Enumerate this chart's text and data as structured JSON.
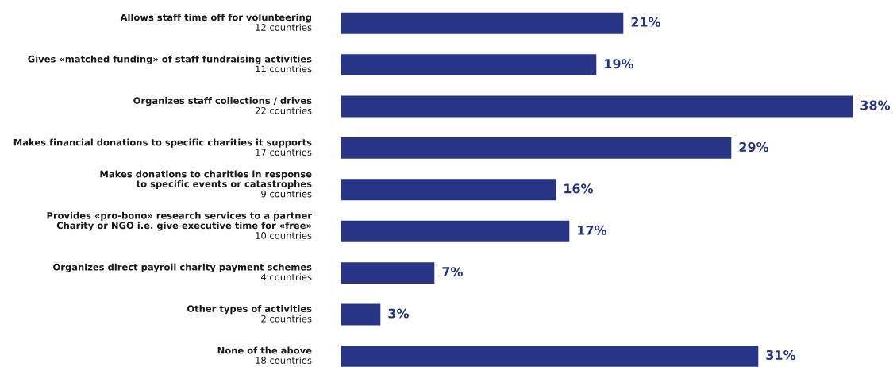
{
  "chart_data": {
    "type": "bar",
    "orientation": "horizontal",
    "categories": [
      "Allows staff time off for volunteering\n12 countries",
      "Gives «matched funding» of staff fundraising activities\n11 countries",
      "Organizes staff collections / drives\n22 countries",
      "Makes financial donations to specific charities it supports\n17 countries",
      "Makes donations to charities in response\nto specific events or catastrophes\n9 countries",
      "Provides «pro-bono» research services to a partner\nCharity or NGO i.e. give executive time for «free»\n10 countries",
      "Organizes direct payroll charity payment schemes\n4 countries",
      "Other types of activities\n2 countries",
      "None of the above\n18 countries"
    ],
    "values": [
      21,
      19,
      38,
      29,
      16,
      17,
      7,
      3,
      31
    ],
    "value_labels": [
      "21%",
      "19%",
      "38%",
      "29%",
      "16%",
      "17%",
      "7%",
      "3%",
      "31%"
    ],
    "color": "#283587"
  }
}
